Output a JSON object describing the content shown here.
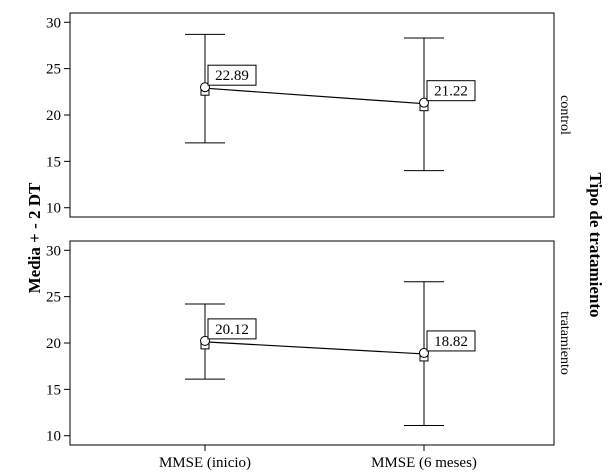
{
  "chart_data": {
    "type": "line",
    "ylabel": "Media + - 2 DT",
    "facet_title": "Tipo de tratamiento",
    "categories": [
      "MMSE (inicio)",
      "MMSE (6 meses)"
    ],
    "ylim": [
      9,
      31
    ],
    "yticks": [
      10,
      15,
      20,
      25,
      30
    ],
    "grid": false,
    "panels": [
      {
        "label": "control",
        "series": [
          {
            "values": [
              22.89,
              21.22
            ],
            "value_labels": [
              "22.89",
              "21.22"
            ],
            "lower": [
              17.0,
              14.0
            ],
            "upper": [
              28.7,
              28.3
            ]
          }
        ]
      },
      {
        "label": "tratamiento",
        "series": [
          {
            "values": [
              20.12,
              18.82
            ],
            "value_labels": [
              "20.12",
              "18.82"
            ],
            "lower": [
              16.1,
              11.1
            ],
            "upper": [
              24.2,
              26.6
            ]
          }
        ]
      }
    ]
  }
}
